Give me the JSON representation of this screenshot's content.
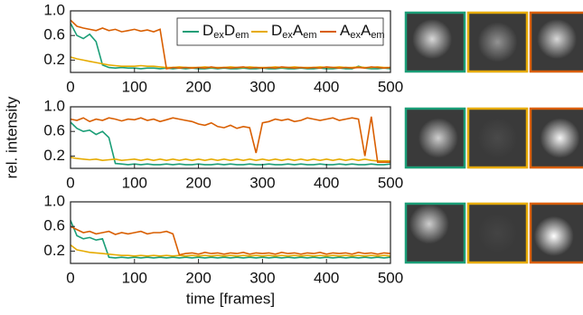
{
  "chart_data": [
    {
      "type": "line",
      "x": [
        0,
        10,
        20,
        30,
        40,
        50,
        60,
        70,
        80,
        90,
        100,
        110,
        120,
        130,
        140,
        150,
        160,
        170,
        180,
        190,
        200,
        210,
        220,
        230,
        240,
        250,
        260,
        270,
        280,
        290,
        300,
        310,
        320,
        330,
        340,
        350,
        360,
        370,
        380,
        390,
        400,
        410,
        420,
        430,
        440,
        450,
        460,
        470,
        480,
        490,
        500
      ],
      "xlim": [
        0,
        500
      ],
      "xticks": [
        0,
        100,
        200,
        300,
        400,
        500
      ],
      "ylim": [
        0,
        1
      ],
      "yticks": [
        0.2,
        0.6,
        {
          "value": 1,
          "label": "1.0"
        }
      ],
      "legend": "upper right",
      "series": [
        {
          "name": "DexDem",
          "color": "#1b9e77",
          "values": [
            0.8,
            0.6,
            0.55,
            0.62,
            0.5,
            0.12,
            0.08,
            0.07,
            0.08,
            0.07,
            0.07,
            0.06,
            0.07,
            0.07,
            0.06,
            0.07,
            0.06,
            0.07,
            0.06,
            0.07,
            0.06,
            0.06,
            0.07,
            0.06,
            0.07,
            0.06,
            0.06,
            0.07,
            0.06,
            0.06,
            0.07,
            0.06,
            0.06,
            0.07,
            0.06,
            0.06,
            0.07,
            0.06,
            0.06,
            0.07,
            0.06,
            0.06,
            0.07,
            0.06,
            0.06,
            0.1,
            0.07,
            0.06,
            0.06,
            0.07,
            0.06
          ]
        },
        {
          "name": "DexAem",
          "color": "#e6ab02",
          "values": [
            0.25,
            0.22,
            0.2,
            0.18,
            0.16,
            0.14,
            0.12,
            0.11,
            0.1,
            0.1,
            0.1,
            0.11,
            0.1,
            0.1,
            0.09,
            0.08,
            0.08,
            0.09,
            0.08,
            0.08,
            0.08,
            0.09,
            0.08,
            0.08,
            0.08,
            0.09,
            0.08,
            0.08,
            0.09,
            0.08,
            0.08,
            0.08,
            0.09,
            0.08,
            0.08,
            0.09,
            0.08,
            0.08,
            0.08,
            0.09,
            0.08,
            0.08,
            0.09,
            0.08,
            0.08,
            0.09,
            0.08,
            0.08,
            0.09,
            0.08,
            0.08
          ]
        },
        {
          "name": "AexAem",
          "color": "#d95f02",
          "values": [
            0.85,
            0.75,
            0.72,
            0.7,
            0.68,
            0.72,
            0.68,
            0.7,
            0.66,
            0.68,
            0.7,
            0.67,
            0.69,
            0.66,
            0.7,
            0.06,
            0.08,
            0.07,
            0.08,
            0.07,
            0.08,
            0.07,
            0.09,
            0.07,
            0.08,
            0.07,
            0.08,
            0.09,
            0.07,
            0.08,
            0.07,
            0.08,
            0.07,
            0.09,
            0.08,
            0.07,
            0.08,
            0.07,
            0.08,
            0.07,
            0.09,
            0.08,
            0.07,
            0.08,
            0.07,
            0.08,
            0.07,
            0.09,
            0.08,
            0.07,
            0.08
          ]
        }
      ]
    },
    {
      "type": "line",
      "x": [
        0,
        10,
        20,
        30,
        40,
        50,
        60,
        70,
        80,
        90,
        100,
        110,
        120,
        130,
        140,
        150,
        160,
        170,
        180,
        190,
        200,
        210,
        220,
        230,
        240,
        250,
        260,
        270,
        280,
        290,
        300,
        310,
        320,
        330,
        340,
        350,
        360,
        370,
        380,
        390,
        400,
        410,
        420,
        430,
        440,
        450,
        460,
        470,
        480,
        490,
        500
      ],
      "xlim": [
        0,
        500
      ],
      "xticks": [
        0,
        100,
        200,
        300,
        400,
        500
      ],
      "ylim": [
        0,
        1
      ],
      "yticks": [
        0.2,
        0.6,
        {
          "value": 1,
          "label": "1.0"
        }
      ],
      "ylabel": "rel. intensity",
      "series": [
        {
          "color": "#1b9e77",
          "values": [
            0.75,
            0.65,
            0.6,
            0.62,
            0.55,
            0.6,
            0.5,
            0.08,
            0.07,
            0.06,
            0.07,
            0.06,
            0.07,
            0.06,
            0.06,
            0.07,
            0.06,
            0.07,
            0.06,
            0.06,
            0.07,
            0.06,
            0.06,
            0.07,
            0.06,
            0.07,
            0.06,
            0.06,
            0.07,
            0.06,
            0.06,
            0.07,
            0.06,
            0.06,
            0.07,
            0.06,
            0.07,
            0.06,
            0.06,
            0.07,
            0.06,
            0.06,
            0.07,
            0.06,
            0.07,
            0.06,
            0.06,
            0.07,
            0.06,
            0.06,
            0.07
          ]
        },
        {
          "color": "#e6ab02",
          "values": [
            0.18,
            0.16,
            0.15,
            0.14,
            0.15,
            0.13,
            0.14,
            0.15,
            0.13,
            0.14,
            0.15,
            0.13,
            0.15,
            0.13,
            0.15,
            0.13,
            0.15,
            0.13,
            0.15,
            0.13,
            0.15,
            0.13,
            0.15,
            0.13,
            0.15,
            0.13,
            0.15,
            0.13,
            0.15,
            0.13,
            0.15,
            0.13,
            0.15,
            0.13,
            0.15,
            0.13,
            0.15,
            0.13,
            0.15,
            0.13,
            0.15,
            0.13,
            0.15,
            0.13,
            0.15,
            0.13,
            0.15,
            0.13,
            0.12,
            0.12,
            0.12
          ]
        },
        {
          "color": "#d95f02",
          "values": [
            0.8,
            0.78,
            0.82,
            0.76,
            0.8,
            0.78,
            0.82,
            0.8,
            0.77,
            0.8,
            0.79,
            0.82,
            0.78,
            0.8,
            0.76,
            0.79,
            0.82,
            0.8,
            0.78,
            0.76,
            0.72,
            0.7,
            0.74,
            0.68,
            0.66,
            0.7,
            0.65,
            0.68,
            0.66,
            0.25,
            0.74,
            0.76,
            0.8,
            0.78,
            0.8,
            0.76,
            0.78,
            0.82,
            0.8,
            0.78,
            0.8,
            0.82,
            0.78,
            0.8,
            0.82,
            0.8,
            0.2,
            0.84,
            0.1,
            0.1,
            0.1
          ]
        }
      ]
    },
    {
      "type": "line",
      "x": [
        0,
        10,
        20,
        30,
        40,
        50,
        60,
        70,
        80,
        90,
        100,
        110,
        120,
        130,
        140,
        150,
        160,
        170,
        180,
        190,
        200,
        210,
        220,
        230,
        240,
        250,
        260,
        270,
        280,
        290,
        300,
        310,
        320,
        330,
        340,
        350,
        360,
        370,
        380,
        390,
        400,
        410,
        420,
        430,
        440,
        450,
        460,
        470,
        480,
        490,
        500
      ],
      "xlim": [
        0,
        500
      ],
      "xticks": [
        0,
        100,
        200,
        300,
        400,
        500
      ],
      "ylim": [
        0,
        1
      ],
      "yticks": [
        0.2,
        0.6,
        {
          "value": 1,
          "label": "1.0"
        }
      ],
      "xlabel": "time [frames]",
      "series": [
        {
          "color": "#1b9e77",
          "values": [
            0.7,
            0.45,
            0.4,
            0.42,
            0.38,
            0.4,
            0.1,
            0.09,
            0.1,
            0.09,
            0.1,
            0.09,
            0.1,
            0.09,
            0.1,
            0.09,
            0.1,
            0.09,
            0.1,
            0.09,
            0.1,
            0.09,
            0.1,
            0.09,
            0.1,
            0.09,
            0.1,
            0.09,
            0.1,
            0.09,
            0.1,
            0.09,
            0.1,
            0.09,
            0.1,
            0.09,
            0.1,
            0.09,
            0.1,
            0.09,
            0.1,
            0.09,
            0.1,
            0.09,
            0.1,
            0.09,
            0.1,
            0.09,
            0.1,
            0.09,
            0.1
          ]
        },
        {
          "color": "#e6ab02",
          "values": [
            0.3,
            0.22,
            0.2,
            0.18,
            0.17,
            0.16,
            0.15,
            0.14,
            0.13,
            0.13,
            0.12,
            0.13,
            0.12,
            0.13,
            0.12,
            0.13,
            0.12,
            0.13,
            0.12,
            0.13,
            0.12,
            0.13,
            0.12,
            0.13,
            0.12,
            0.13,
            0.12,
            0.13,
            0.12,
            0.13,
            0.12,
            0.13,
            0.12,
            0.13,
            0.12,
            0.13,
            0.12,
            0.13,
            0.12,
            0.13,
            0.12,
            0.13,
            0.12,
            0.13,
            0.12,
            0.13,
            0.12,
            0.13,
            0.12,
            0.13,
            0.12
          ]
        },
        {
          "color": "#d95f02",
          "values": [
            0.6,
            0.55,
            0.5,
            0.52,
            0.48,
            0.5,
            0.52,
            0.47,
            0.5,
            0.48,
            0.5,
            0.52,
            0.48,
            0.5,
            0.5,
            0.52,
            0.48,
            0.14,
            0.16,
            0.17,
            0.15,
            0.18,
            0.16,
            0.17,
            0.15,
            0.17,
            0.16,
            0.18,
            0.15,
            0.17,
            0.16,
            0.17,
            0.15,
            0.18,
            0.16,
            0.17,
            0.15,
            0.17,
            0.16,
            0.18,
            0.15,
            0.17,
            0.16,
            0.17,
            0.15,
            0.18,
            0.16,
            0.17,
            0.15,
            0.17,
            0.16
          ]
        }
      ]
    }
  ]
}
